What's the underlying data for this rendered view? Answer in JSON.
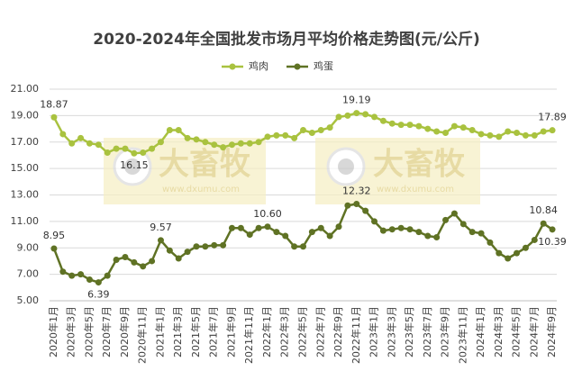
{
  "chart_data": {
    "type": "line",
    "title": "2020-2024年全国批发市场月平均价格走势图(元/公斤)",
    "categories": [
      "2020年1月",
      null,
      "2020年3月",
      null,
      "2020年5月",
      null,
      "2020年7月",
      null,
      "2020年9月",
      null,
      "2020年11月",
      null,
      "2021年1月",
      null,
      "2021年3月",
      null,
      "2021年5月",
      null,
      "2021年7月",
      null,
      "2021年9月",
      null,
      "2021年11月",
      null,
      "2022年1月",
      null,
      "2022年3月",
      null,
      "2022年5月",
      null,
      "2022年7月",
      null,
      "2022年9月",
      null,
      "2022年11月",
      null,
      "2023年1月",
      null,
      "2023年3月",
      null,
      "2023年5月",
      null,
      "2023年7月",
      null,
      "2023年9月",
      null,
      "2023年11月",
      null,
      "2024年1月",
      null,
      "2024年3月",
      null,
      "2024年5月",
      null,
      "2024年7月",
      null,
      "2024年9月"
    ],
    "series": [
      {
        "name": "鸡肉",
        "color": "#a9c23f",
        "values": [
          18.87,
          17.6,
          16.9,
          17.3,
          16.9,
          16.8,
          16.2,
          16.5,
          16.5,
          16.15,
          16.2,
          16.5,
          17.0,
          17.9,
          17.9,
          17.3,
          17.2,
          17.0,
          16.8,
          16.6,
          16.8,
          16.9,
          16.9,
          17.0,
          17.4,
          17.5,
          17.5,
          17.3,
          17.9,
          17.7,
          17.9,
          18.1,
          18.9,
          19.0,
          19.19,
          19.1,
          18.9,
          18.6,
          18.4,
          18.3,
          18.3,
          18.2,
          18.0,
          17.8,
          17.7,
          18.2,
          18.1,
          17.9,
          17.6,
          17.5,
          17.4,
          17.8,
          17.7,
          17.5,
          17.5,
          17.8,
          17.89
        ],
        "value_labels": [
          "18.87",
          null,
          null,
          null,
          null,
          null,
          null,
          null,
          null,
          "16.15",
          null,
          null,
          null,
          null,
          null,
          null,
          null,
          null,
          null,
          null,
          null,
          null,
          null,
          null,
          null,
          null,
          null,
          null,
          null,
          null,
          null,
          null,
          null,
          null,
          "19.19",
          null,
          null,
          null,
          null,
          null,
          null,
          null,
          null,
          null,
          null,
          null,
          null,
          null,
          null,
          null,
          null,
          null,
          null,
          null,
          null,
          null,
          "17.89"
        ]
      },
      {
        "name": "鸡蛋",
        "color": "#5f7224",
        "values": [
          8.95,
          7.2,
          6.9,
          7.0,
          6.6,
          6.39,
          6.9,
          8.1,
          8.3,
          7.9,
          7.6,
          8.0,
          9.57,
          8.8,
          8.2,
          8.7,
          9.1,
          9.1,
          9.2,
          9.2,
          10.5,
          10.5,
          10.0,
          10.5,
          10.6,
          10.2,
          9.9,
          9.1,
          9.1,
          10.2,
          10.5,
          9.9,
          10.6,
          12.2,
          12.32,
          11.8,
          11.0,
          10.3,
          10.4,
          10.5,
          10.4,
          10.2,
          9.9,
          9.8,
          11.1,
          11.6,
          10.8,
          10.2,
          10.1,
          9.4,
          8.6,
          8.2,
          8.6,
          9.0,
          9.6,
          10.84,
          10.39
        ],
        "value_labels": [
          "8.95",
          null,
          null,
          null,
          null,
          "6.39",
          null,
          null,
          null,
          null,
          null,
          null,
          "9.57",
          null,
          null,
          null,
          null,
          null,
          null,
          null,
          null,
          null,
          null,
          null,
          "10.60",
          null,
          null,
          null,
          null,
          null,
          null,
          null,
          null,
          null,
          "12.32",
          null,
          null,
          null,
          null,
          null,
          null,
          null,
          null,
          null,
          null,
          null,
          null,
          null,
          null,
          null,
          null,
          null,
          null,
          null,
          null,
          "10.84",
          "10.39"
        ]
      }
    ],
    "ylim": [
      5,
      21
    ],
    "yticks": [
      {
        "value": 5,
        "label": "5.00"
      },
      {
        "value": 7,
        "label": "7.00"
      },
      {
        "value": 9,
        "label": "9.00"
      },
      {
        "value": 11,
        "label": "11.00"
      },
      {
        "value": 13,
        "label": "13.00"
      },
      {
        "value": 15,
        "label": "15.00"
      },
      {
        "value": 17,
        "label": "17.00"
      },
      {
        "value": 19,
        "label": "19.00"
      },
      {
        "value": 21,
        "label": "21.00"
      }
    ],
    "grid": true,
    "legend": "top"
  },
  "watermark": {
    "text": "大畜牧",
    "url": "www.dxumu.com"
  }
}
